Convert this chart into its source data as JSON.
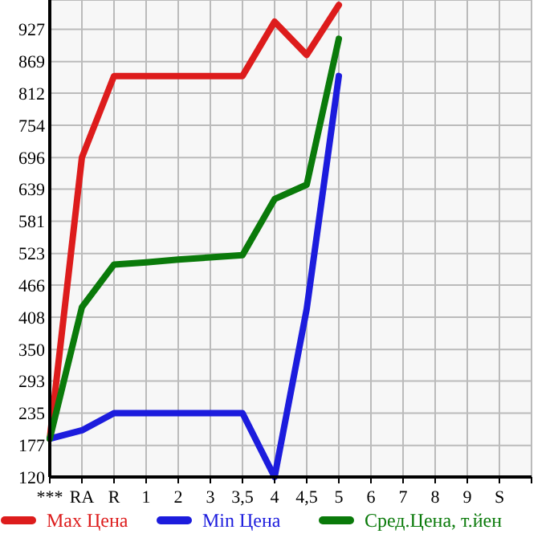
{
  "chart_data": {
    "type": "line",
    "categories": [
      "***",
      "RA",
      "R",
      "1",
      "2",
      "3",
      "3,5",
      "4",
      "4,5",
      "5",
      "6",
      "7",
      "8",
      "9",
      "S",
      null
    ],
    "series": [
      {
        "name": "Max Цена",
        "color": "#dd1c1c",
        "values": [
          189,
          696,
          843,
          843,
          843,
          843,
          843,
          941,
          881,
          971,
          null,
          null,
          null,
          null,
          null,
          null
        ]
      },
      {
        "name": "Min Цена",
        "color": "#1c1cdd",
        "values": [
          189,
          204,
          235,
          235,
          235,
          235,
          235,
          120,
          423,
          843,
          null,
          null,
          null,
          null,
          null,
          null
        ]
      },
      {
        "name": "Сред.Цена, т.йен",
        "color": "#0a7a0a",
        "values": [
          189,
          426,
          503,
          507,
          512,
          516,
          520,
          621,
          647,
          910,
          null,
          null,
          null,
          null,
          null,
          null
        ]
      }
    ],
    "ylim": [
      120,
      980
    ],
    "yticks": [
      120,
      177,
      235,
      293,
      350,
      408,
      466,
      523,
      581,
      639,
      696,
      754,
      812,
      869,
      927
    ],
    "grid": true,
    "legend": "bottom",
    "marker": "none",
    "line_style": "solid"
  }
}
